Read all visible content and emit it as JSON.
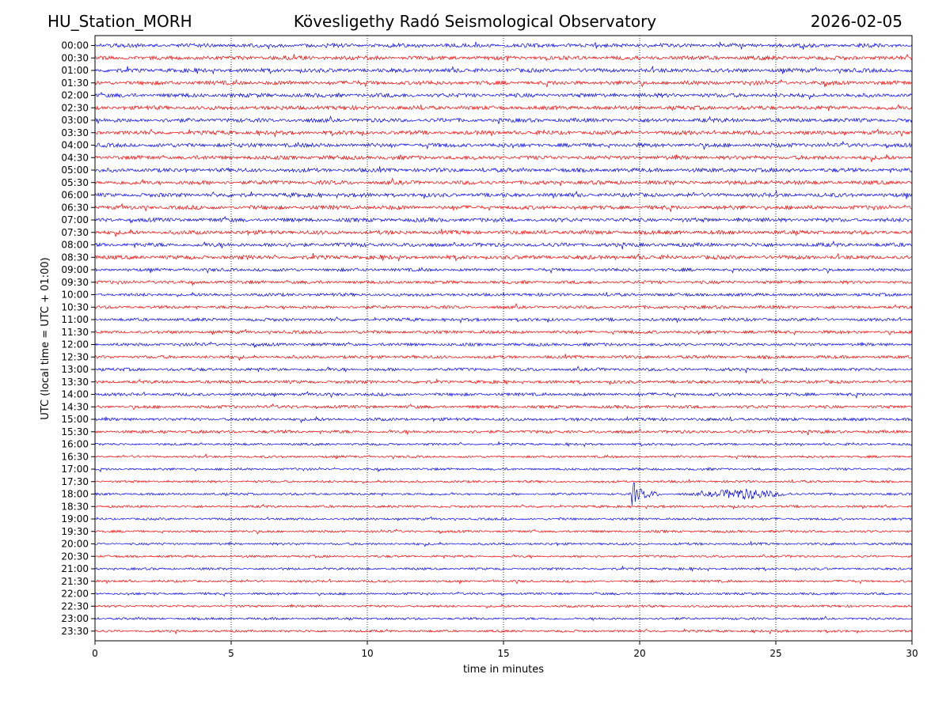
{
  "header": {
    "station": "HU_Station_MORH",
    "observatory": "Kövesligethy Radó Seismological Observatory",
    "date": "2026-02-05"
  },
  "chart_data": {
    "type": "line",
    "subtype": "helicorder",
    "xlabel": "time in minutes",
    "ylabel": "UTC (local time = UTC + 01:00)",
    "xlim": [
      0,
      30
    ],
    "x_ticks": [
      "0",
      "5",
      "10",
      "15",
      "20",
      "25",
      "30"
    ],
    "grid": "vertical dotted lines at each x tick",
    "colors": [
      "#0000ff",
      "#ff0000"
    ],
    "row_labels": [
      "00:00",
      "00:30",
      "01:00",
      "01:30",
      "02:00",
      "02:30",
      "03:00",
      "03:30",
      "04:00",
      "04:30",
      "05:00",
      "05:30",
      "06:00",
      "06:30",
      "07:00",
      "07:30",
      "08:00",
      "08:30",
      "09:00",
      "09:30",
      "10:00",
      "10:30",
      "11:00",
      "11:30",
      "12:00",
      "12:30",
      "13:00",
      "13:30",
      "14:00",
      "14:30",
      "15:00",
      "15:30",
      "16:00",
      "16:30",
      "17:00",
      "17:30",
      "18:00",
      "18:30",
      "19:00",
      "19:30",
      "20:00",
      "20:30",
      "21:00",
      "21:30",
      "22:00",
      "22:30",
      "23:00",
      "23:30"
    ],
    "event": {
      "row": "18:00",
      "onset_minute": 19.7,
      "end_minute": 26.5,
      "coda_peak_minute": 23.8
    }
  }
}
